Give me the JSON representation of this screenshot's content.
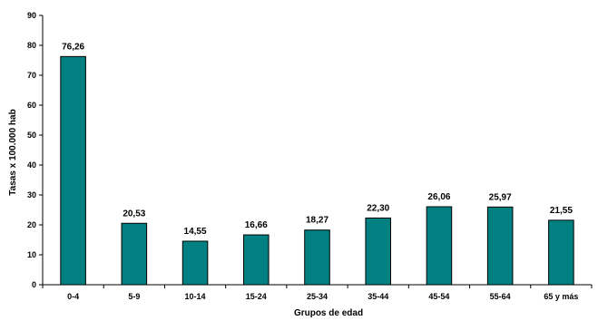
{
  "chart_data": {
    "type": "bar",
    "title": "",
    "xlabel": "Grupos de edad",
    "ylabel": "Tasas x 100.000 hab",
    "categories": [
      "0-4",
      "5-9",
      "10-14",
      "15-24",
      "25-34",
      "35-44",
      "45-54",
      "55-64",
      "65 y más"
    ],
    "values": [
      76.26,
      20.53,
      14.55,
      16.66,
      18.27,
      22.3,
      26.06,
      25.97,
      21.55
    ],
    "value_labels": [
      "76,26",
      "20,53",
      "14,55",
      "16,66",
      "18,27",
      "22,30",
      "26,06",
      "25,97",
      "21,55"
    ],
    "ylim": [
      0,
      90
    ],
    "yticks": [
      0,
      10,
      20,
      30,
      40,
      50,
      60,
      70,
      80,
      90
    ],
    "grid": false,
    "legend": "none",
    "bar_color": "#008080",
    "bar_edge_color": "#000000"
  }
}
